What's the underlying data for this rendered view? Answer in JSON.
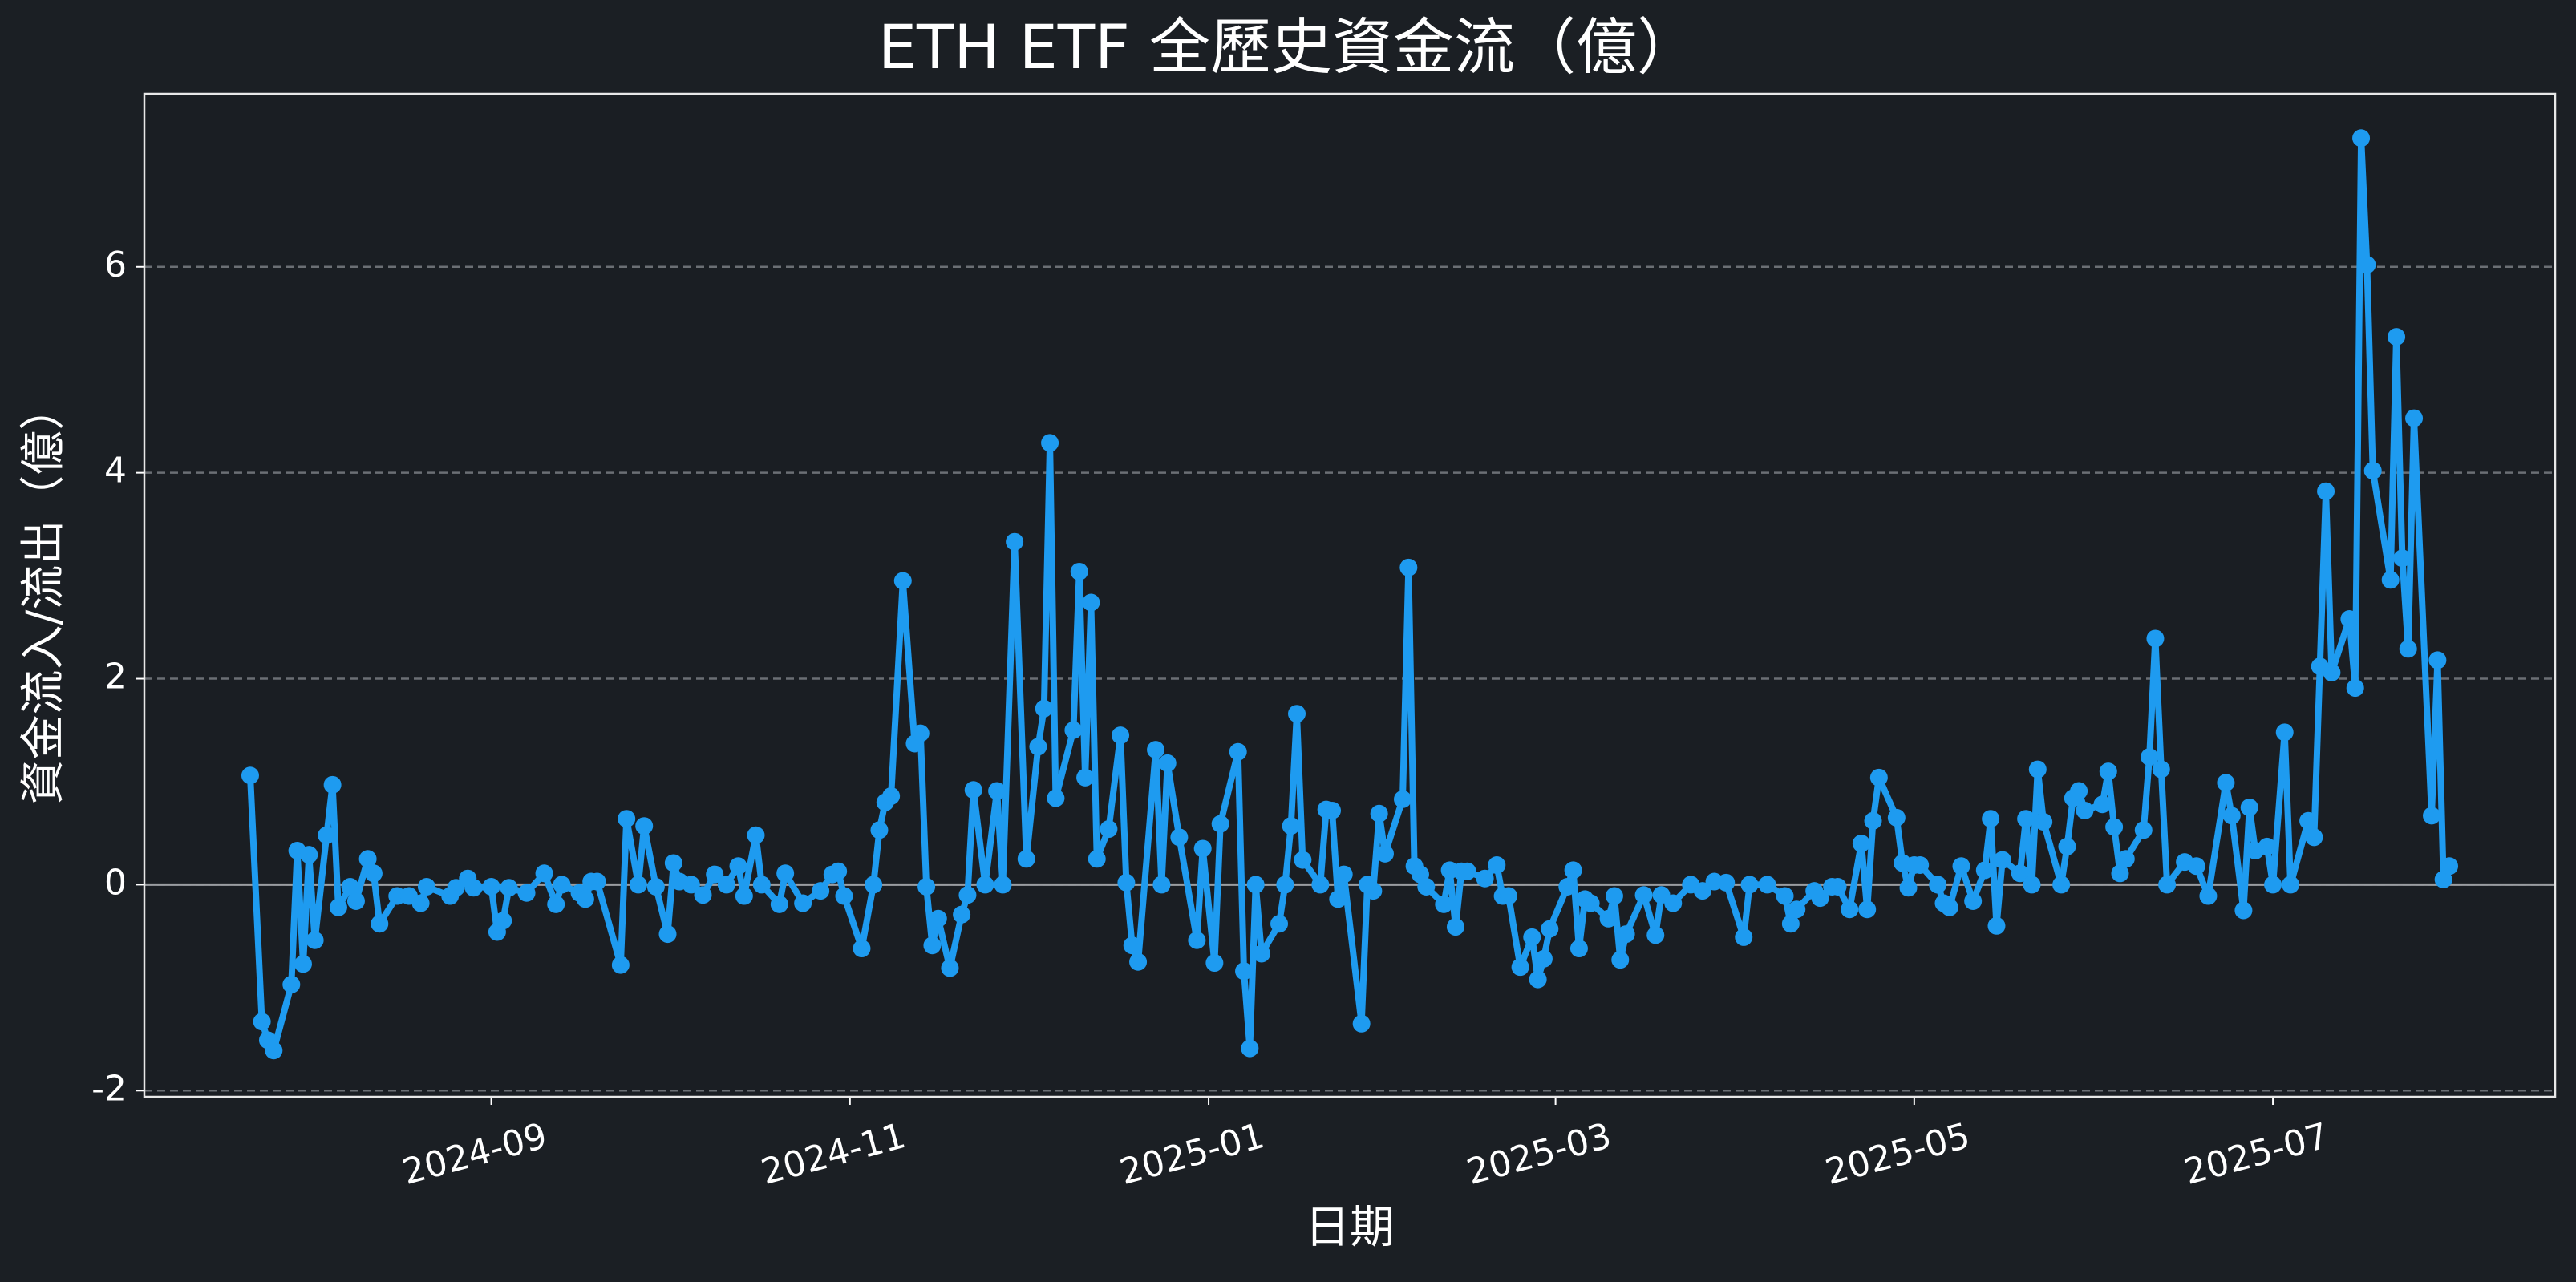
{
  "chart_data": {
    "type": "line",
    "title": "ETH ETF 全歷史資金流（億）",
    "xlabel": "日期",
    "ylabel": "資金流入/流出（億）",
    "color": "#1e9bf0",
    "grid": true,
    "reference_line": 0,
    "xlim": [
      -59,
      351
    ],
    "xticks": [
      {
        "value": 0,
        "label": "2024-09"
      },
      {
        "value": 61,
        "label": "2024-11"
      },
      {
        "value": 122,
        "label": "2025-01"
      },
      {
        "value": 181,
        "label": "2025-03"
      },
      {
        "value": 242,
        "label": "2025-05"
      },
      {
        "value": 303,
        "label": "2025-07"
      }
    ],
    "ylim": [
      -2.06,
      7.68
    ],
    "yticks": [
      -2,
      0,
      2,
      4,
      6
    ],
    "x": [
      -41,
      -39,
      -38,
      -37,
      -34,
      -33,
      -32,
      -31,
      -30,
      -28,
      -27,
      -26,
      -24,
      -23,
      -21,
      -20,
      -19,
      -16,
      -14,
      -12,
      -11,
      -7,
      -6,
      -4,
      -3,
      0,
      1,
      2,
      3,
      6,
      9,
      11,
      12,
      15,
      16,
      17,
      18,
      22,
      23,
      25,
      26,
      28,
      30,
      31,
      32,
      34,
      36,
      38,
      40,
      42,
      43,
      45,
      46,
      49,
      50,
      53,
      56,
      58,
      59,
      60,
      63,
      65,
      66,
      67,
      68,
      70,
      72,
      73,
      74,
      75,
      76,
      78,
      80,
      81,
      82,
      84,
      86,
      87,
      89,
      91,
      93,
      94,
      95,
      96,
      99,
      100,
      101,
      102,
      103,
      105,
      107,
      108,
      109,
      110,
      113,
      114,
      115,
      117,
      120,
      121,
      123,
      124,
      127,
      128,
      129,
      130,
      131,
      134,
      135,
      136,
      137,
      138,
      141,
      142,
      143,
      144,
      145,
      148,
      149,
      150,
      151,
      152,
      155,
      156,
      157,
      158,
      159,
      162,
      163,
      164,
      165,
      166,
      169,
      171,
      172,
      173,
      175,
      177,
      178,
      179,
      180,
      183,
      184,
      185,
      186,
      187,
      190,
      191,
      192,
      193,
      196,
      198,
      199,
      201,
      204,
      206,
      208,
      210,
      213,
      214,
      217,
      220,
      221,
      222,
      225,
      226,
      228,
      229,
      231,
      233,
      234,
      235,
      236,
      239,
      240,
      241,
      242,
      243,
      246,
      247,
      248,
      250,
      252,
      254,
      255,
      256,
      257,
      260,
      261,
      262,
      263,
      264,
      267,
      268,
      269,
      270,
      271,
      274,
      275,
      276,
      277,
      278,
      281,
      282,
      283,
      284,
      285,
      288,
      290,
      292,
      295,
      296,
      298,
      299,
      300,
      302,
      303,
      305,
      306,
      309,
      310,
      311,
      312,
      313,
      316,
      317,
      318,
      319,
      320,
      323,
      324,
      325,
      326,
      327,
      330,
      331,
      332,
      333
    ],
    "values": [
      1.06,
      -1.33,
      -1.51,
      -1.61,
      -0.97,
      0.33,
      -0.77,
      0.29,
      -0.54,
      0.48,
      0.97,
      -0.22,
      -0.02,
      -0.16,
      0.25,
      0.11,
      -0.38,
      -0.11,
      -0.11,
      -0.18,
      -0.02,
      -0.11,
      -0.03,
      0.06,
      -0.03,
      -0.02,
      -0.46,
      -0.35,
      -0.03,
      -0.08,
      0.11,
      -0.19,
      0,
      -0.08,
      -0.14,
      0.03,
      0.03,
      -0.78,
      0.64,
      0,
      0.57,
      -0.02,
      -0.48,
      0.21,
      0.03,
      0,
      -0.1,
      0.1,
      0,
      0.18,
      -0.11,
      0.48,
      0,
      -0.19,
      0.11,
      -0.18,
      -0.06,
      0.1,
      0.13,
      -0.11,
      -0.62,
      0,
      0.53,
      0.8,
      0.86,
      2.95,
      1.37,
      1.47,
      -0.02,
      -0.59,
      -0.33,
      -0.81,
      -0.29,
      -0.1,
      0.92,
      0,
      0.91,
      0,
      3.33,
      0.25,
      1.34,
      1.71,
      4.29,
      0.84,
      1.5,
      3.04,
      1.04,
      2.74,
      0.25,
      0.54,
      1.45,
      0.02,
      -0.59,
      -0.75,
      1.31,
      0,
      1.18,
      0.46,
      -0.54,
      0.35,
      -0.76,
      0.59,
      1.29,
      -0.84,
      -1.59,
      0,
      -0.67,
      -0.38,
      0,
      0.57,
      1.66,
      0.24,
      0,
      0.73,
      0.72,
      -0.14,
      0.1,
      -1.35,
      0,
      -0.06,
      0.69,
      0.3,
      0.83,
      3.08,
      0.18,
      0.1,
      -0.02,
      -0.19,
      0.14,
      -0.41,
      0.13,
      0.13,
      0.06,
      0.19,
      -0.11,
      -0.11,
      -0.8,
      -0.51,
      -0.92,
      -0.72,
      -0.43,
      -0.02,
      0.14,
      -0.62,
      -0.14,
      -0.18,
      -0.33,
      -0.11,
      -0.73,
      -0.48,
      -0.1,
      -0.49,
      -0.1,
      -0.18,
      0,
      -0.06,
      0.03,
      0.02,
      -0.51,
      0,
      0,
      -0.11,
      -0.38,
      -0.24,
      -0.06,
      -0.13,
      -0.02,
      -0.02,
      -0.24,
      0.4,
      -0.24,
      0.62,
      1.04,
      0.65,
      0.21,
      -0.03,
      0.19,
      0.19,
      0,
      -0.18,
      -0.22,
      0.18,
      -0.16,
      0.14,
      0.64,
      -0.4,
      0.24,
      0.11,
      0.64,
      0,
      1.12,
      0.61,
      0,
      0.37,
      0.84,
      0.91,
      0.72,
      0.78,
      1.1,
      0.56,
      0.11,
      0.25,
      0.53,
      1.24,
      2.39,
      1.12,
      0,
      0.22,
      0.18,
      -0.11,
      0.99,
      0.67,
      -0.25,
      0.75,
      0.33,
      0.37,
      0,
      1.48,
      0,
      0.62,
      0.46,
      2.12,
      3.82,
      2.06,
      2.58,
      1.91,
      7.25,
      6.02,
      4.02,
      2.96,
      5.32,
      3.17,
      2.29,
      4.53,
      0.67,
      2.18,
      0.05,
      0.18
    ]
  }
}
